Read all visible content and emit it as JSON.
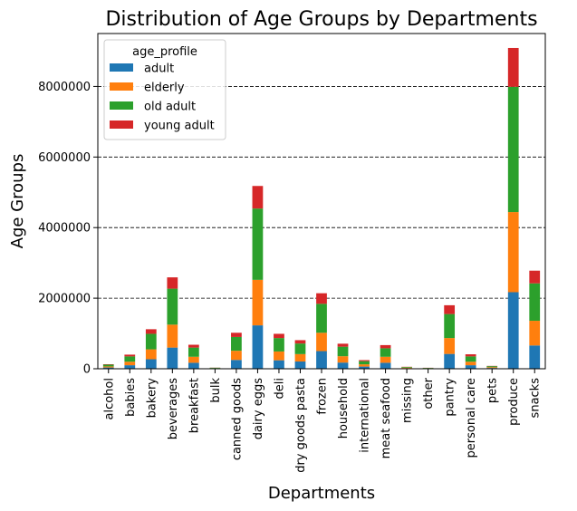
{
  "chart_data": {
    "type": "bar",
    "stacked": true,
    "title": "Distribution of Age Groups by Departments",
    "xlabel": "Departments",
    "ylabel": "Age Groups",
    "ylim": [
      0,
      9500000
    ],
    "yticks": [
      0,
      2000000,
      4000000,
      6000000,
      8000000
    ],
    "grid": "horizontal-dashed",
    "legend": {
      "title": "age_profile",
      "placement": "top-left"
    },
    "categories": [
      "alcohol",
      "babies",
      "bakery",
      "beverages",
      "breakfast",
      "bulk",
      "canned goods",
      "dairy eggs",
      "deli",
      "dry goods pasta",
      "frozen",
      "household",
      "international",
      "meat seafood",
      "missing",
      "other",
      "pantry",
      "personal care",
      "pets",
      "produce",
      "snacks"
    ],
    "series": [
      {
        "name": "adult",
        "color": "#1f77b4",
        "values": [
          36000,
          100000,
          270000,
          600000,
          170000,
          8000,
          250000,
          1230000,
          240000,
          205000,
          500000,
          175000,
          62000,
          170000,
          16000,
          8000,
          420000,
          100000,
          22000,
          2170000,
          660000
        ]
      },
      {
        "name": "elderly",
        "color": "#ff7f0e",
        "values": [
          30000,
          100000,
          280000,
          650000,
          170000,
          9000,
          260000,
          1290000,
          250000,
          210000,
          520000,
          180000,
          63000,
          170000,
          17000,
          9000,
          450000,
          100000,
          23000,
          2270000,
          700000
        ]
      },
      {
        "name": "old adult",
        "color": "#2ca02c",
        "values": [
          50000,
          150000,
          440000,
          1020000,
          260000,
          12000,
          390000,
          2020000,
          380000,
          300000,
          820000,
          270000,
          90000,
          240000,
          18000,
          8000,
          680000,
          150000,
          28000,
          3550000,
          1060000
        ]
      },
      {
        "name": "young adult",
        "color": "#d62728",
        "values": [
          12000,
          50000,
          130000,
          320000,
          80000,
          3000,
          120000,
          640000,
          120000,
          95000,
          300000,
          85000,
          30000,
          90000,
          5000,
          3000,
          250000,
          60000,
          8000,
          1100000,
          360000
        ]
      }
    ]
  }
}
